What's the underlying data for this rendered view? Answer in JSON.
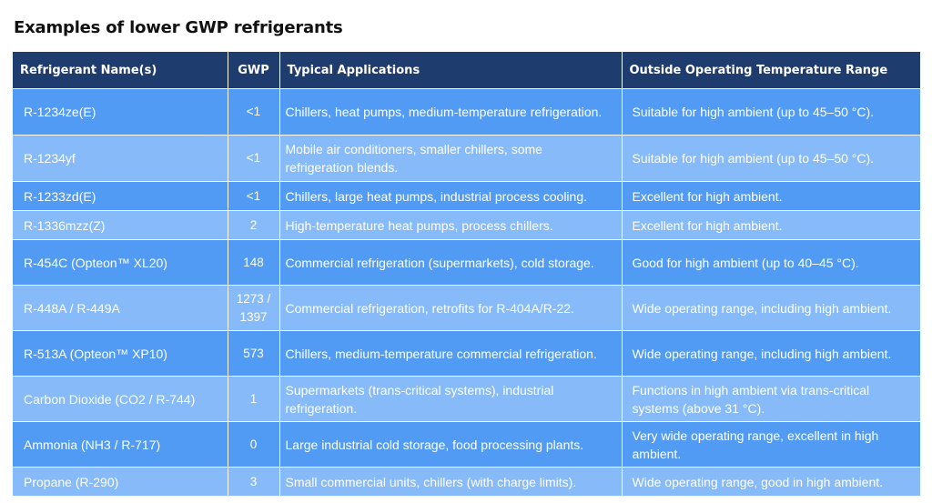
{
  "title": "Examples of lower GWP refrigerants",
  "table": {
    "headers": [
      "Refrigerant Name(s)",
      "GWP",
      "Typical Applications",
      "Outside Operating Temperature Range"
    ],
    "rows": [
      {
        "name": "R-1234ze(E)",
        "gwp": "<1",
        "applications": "Chillers, heat pumps, medium-temperature refrigeration.",
        "range": "Suitable for high ambient (up to 45–50 °C)."
      },
      {
        "name": "R-1234yf",
        "gwp": "<1",
        "applications": "Mobile air conditioners, smaller chillers, some refrigeration blends.",
        "range": "Suitable for high ambient (up to 45–50 °C)."
      },
      {
        "name": "R-1233zd(E)",
        "gwp": "<1",
        "applications": "Chillers, large heat pumps, industrial process cooling.",
        "range": "Excellent for high ambient."
      },
      {
        "name": "R-1336mzz(Z)",
        "gwp": "2",
        "applications": "High-temperature heat pumps, process chillers.",
        "range": "Excellent for high ambient."
      },
      {
        "name": "R-454C (Opteon™ XL20)",
        "gwp": "148",
        "applications": "Commercial refrigeration (supermarkets), cold storage.",
        "range": "Good for high ambient (up to 40–45 °C)."
      },
      {
        "name": "R-448A / R-449A",
        "gwp": "1273 / 1397",
        "applications": "Commercial refrigeration, retrofits for R-404A/R-22.",
        "range": "Wide operating range, including high ambient."
      },
      {
        "name": "R-513A (Opteon™ XP10)",
        "gwp": "573",
        "applications": "Chillers, medium-temperature commercial refrigeration.",
        "range": "Wide operating range, including high ambient."
      },
      {
        "name": "Carbon Dioxide (CO2 / R-744)",
        "gwp": "1",
        "applications": "Supermarkets (trans-critical systems), industrial refrigeration.",
        "range": "Functions in high ambient via trans-critical systems (above 31 °C)."
      },
      {
        "name": "Ammonia (NH3 / R-717)",
        "gwp": "0",
        "applications": "Large industrial cold storage, food processing plants.",
        "range": "Very wide operating range, excellent in high ambient."
      },
      {
        "name": "Propane (R-290)",
        "gwp": "3",
        "applications": "Small commercial units, chillers (with charge limits).",
        "range": "Wide operating range, good in high ambient."
      }
    ]
  },
  "colors": {
    "header_bg": "#1f3c6e",
    "row_dark": "#519bf5",
    "row_light": "#86baf9"
  }
}
